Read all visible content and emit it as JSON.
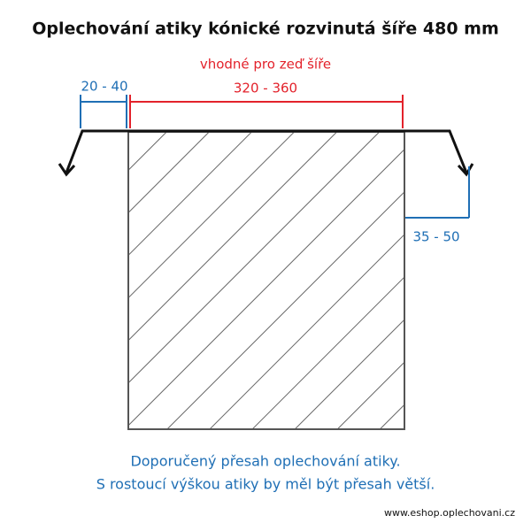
{
  "title": "Oplechování atiky kónické rozvinutá šíře 480 mm",
  "wall_label": "vhodné pro zeď šíře",
  "wall_width": "320 - 360",
  "left_overhang": "20 - 40",
  "right_overhang": "35 - 50",
  "caption": [
    "Doporučený přesah oplechování atiky.",
    "S rostoucí výškou atiky by měl být přesah větší."
  ],
  "website": "www.eshop.oplechovani.cz"
}
